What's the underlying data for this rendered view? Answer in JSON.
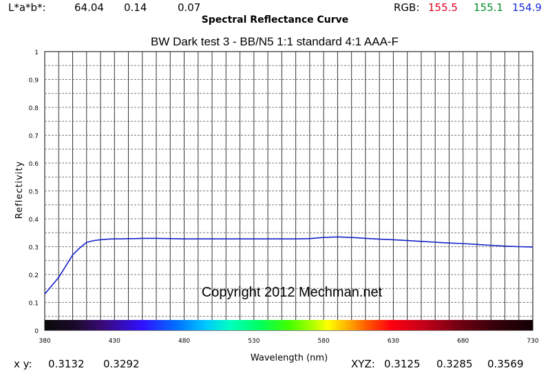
{
  "header": {
    "lab_label": "L*a*b*:",
    "lab_values": [
      "64.04",
      "0.14",
      "0.07"
    ],
    "rgb_label": "RGB:",
    "rgb_values": [
      "155.5",
      "155.1",
      "154.9"
    ],
    "page_title": "Spectral Reflectance Curve"
  },
  "footer": {
    "xy_label": "x y:",
    "xy_values": [
      "0.3132",
      "0.3292"
    ],
    "xyz_label": "XYZ:",
    "xyz_values": [
      "0.3125",
      "0.3285",
      "0.3569"
    ]
  },
  "chart_data": {
    "type": "line",
    "title": "BW Dark test 3 - BB/N5 1:1 standard 4:1 AAA-F",
    "xlabel": "Wavelength (nm)",
    "ylabel": "Reflectivity",
    "xlim": [
      380,
      730
    ],
    "ylim": [
      0,
      1
    ],
    "x_ticks": [
      380,
      430,
      480,
      530,
      580,
      630,
      680,
      730
    ],
    "y_ticks": [
      "0",
      "0.1",
      "0.2",
      "0.3",
      "0.4",
      "0.5",
      "0.6",
      "0.7",
      "0.8",
      "0.9",
      "1"
    ],
    "grid": true,
    "spectrum_bar": true,
    "watermark": "Copyright 2012 Mechman.net",
    "line_color": "#1020c8",
    "series": [
      {
        "x": [
          380,
          385,
          390,
          395,
          400,
          405,
          410,
          415,
          420,
          425,
          430,
          435,
          440,
          445,
          450,
          460,
          470,
          480,
          490,
          500,
          510,
          520,
          530,
          540,
          550,
          560,
          570,
          580,
          590,
          600,
          610,
          620,
          630,
          640,
          650,
          660,
          670,
          680,
          690,
          700,
          710,
          720,
          730
        ],
        "y": [
          0.13,
          0.16,
          0.19,
          0.23,
          0.27,
          0.295,
          0.315,
          0.322,
          0.325,
          0.327,
          0.328,
          0.328,
          0.329,
          0.329,
          0.33,
          0.33,
          0.329,
          0.328,
          0.328,
          0.328,
          0.328,
          0.328,
          0.328,
          0.328,
          0.328,
          0.328,
          0.329,
          0.333,
          0.335,
          0.333,
          0.33,
          0.327,
          0.325,
          0.322,
          0.319,
          0.316,
          0.313,
          0.311,
          0.308,
          0.305,
          0.302,
          0.3,
          0.299
        ]
      }
    ]
  }
}
